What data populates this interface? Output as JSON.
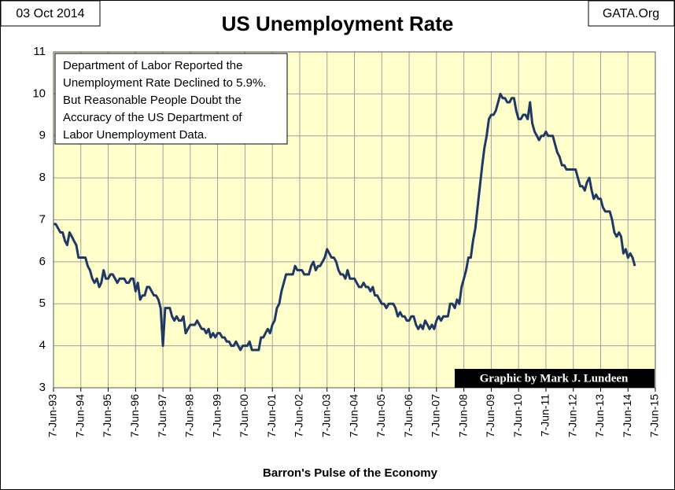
{
  "chart_data": {
    "type": "line",
    "title": "US Unemployment Rate",
    "date_label": "03 Oct 2014",
    "source_label": "GATA.Org",
    "annotation": [
      "Department of Labor Reported the",
      "Unemployment Rate Declined to 5.9%.",
      "But Reasonable People Doubt the",
      "Accuracy of the US Department of",
      "Labor Unemployment Data."
    ],
    "credit": "Graphic by Mark J. Lundeen",
    "xlabel": "Barron's Pulse of the Economy",
    "color": "#1f3864",
    "grid": true,
    "ylim": [
      3,
      11
    ],
    "yticks": [
      3,
      4,
      5,
      6,
      7,
      8,
      9,
      10,
      11
    ],
    "xlim": [
      "1993-06-07",
      "2015-06-07"
    ],
    "xticks": [
      {
        "value": "1993-06-07",
        "label": "7-Jun-93"
      },
      {
        "value": "1994-06-07",
        "label": "7-Jun-94"
      },
      {
        "value": "1995-06-07",
        "label": "7-Jun-95"
      },
      {
        "value": "1996-06-07",
        "label": "7-Jun-96"
      },
      {
        "value": "1997-06-07",
        "label": "7-Jun-97"
      },
      {
        "value": "1998-06-07",
        "label": "7-Jun-98"
      },
      {
        "value": "1999-06-07",
        "label": "7-Jun-99"
      },
      {
        "value": "2000-06-07",
        "label": "7-Jun-00"
      },
      {
        "value": "2001-06-07",
        "label": "7-Jun-01"
      },
      {
        "value": "2002-06-07",
        "label": "7-Jun-02"
      },
      {
        "value": "2003-06-07",
        "label": "7-Jun-03"
      },
      {
        "value": "2004-06-07",
        "label": "7-Jun-04"
      },
      {
        "value": "2005-06-07",
        "label": "7-Jun-05"
      },
      {
        "value": "2006-06-07",
        "label": "7-Jun-06"
      },
      {
        "value": "2007-06-07",
        "label": "7-Jun-07"
      },
      {
        "value": "2008-06-07",
        "label": "7-Jun-08"
      },
      {
        "value": "2009-06-07",
        "label": "7-Jun-09"
      },
      {
        "value": "2010-06-07",
        "label": "7-Jun-10"
      },
      {
        "value": "2011-06-07",
        "label": "7-Jun-11"
      },
      {
        "value": "2012-06-07",
        "label": "7-Jun-12"
      },
      {
        "value": "2013-06-07",
        "label": "7-Jun-13"
      },
      {
        "value": "2014-06-07",
        "label": "7-Jun-14"
      },
      {
        "value": "2015-06-07",
        "label": "7-Jun-15"
      }
    ],
    "x": [
      "1993-06-07",
      "1993-07-07",
      "1993-08-07",
      "1993-09-07",
      "1993-10-07",
      "1993-11-07",
      "1993-12-07",
      "1994-01-07",
      "1994-02-07",
      "1994-03-07",
      "1994-04-07",
      "1994-05-07",
      "1994-06-07",
      "1994-07-07",
      "1994-08-07",
      "1994-09-07",
      "1994-10-07",
      "1994-11-07",
      "1994-12-07",
      "1995-01-07",
      "1995-02-07",
      "1995-03-07",
      "1995-04-07",
      "1995-05-07",
      "1995-06-07",
      "1995-07-07",
      "1995-08-07",
      "1995-09-07",
      "1995-10-07",
      "1995-11-07",
      "1995-12-07",
      "1996-01-07",
      "1996-02-07",
      "1996-03-07",
      "1996-04-07",
      "1996-05-07",
      "1996-06-07",
      "1996-07-07",
      "1996-08-07",
      "1996-09-07",
      "1996-10-07",
      "1996-11-07",
      "1996-12-07",
      "1997-01-07",
      "1997-02-07",
      "1997-03-07",
      "1997-04-07",
      "1997-05-07",
      "1997-06-07",
      "1997-07-07",
      "1997-08-07",
      "1997-09-07",
      "1997-10-07",
      "1997-11-07",
      "1997-12-07",
      "1998-01-07",
      "1998-02-07",
      "1998-03-07",
      "1998-04-07",
      "1998-05-07",
      "1998-06-07",
      "1998-07-07",
      "1998-08-07",
      "1998-09-07",
      "1998-10-07",
      "1998-11-07",
      "1998-12-07",
      "1999-01-07",
      "1999-02-07",
      "1999-03-07",
      "1999-04-07",
      "1999-05-07",
      "1999-06-07",
      "1999-07-07",
      "1999-08-07",
      "1999-09-07",
      "1999-10-07",
      "1999-11-07",
      "1999-12-07",
      "2000-01-07",
      "2000-02-07",
      "2000-03-07",
      "2000-04-07",
      "2000-05-07",
      "2000-06-07",
      "2000-07-07",
      "2000-08-07",
      "2000-09-07",
      "2000-10-07",
      "2000-11-07",
      "2000-12-07",
      "2001-01-07",
      "2001-02-07",
      "2001-03-07",
      "2001-04-07",
      "2001-05-07",
      "2001-06-07",
      "2001-07-07",
      "2001-08-07",
      "2001-09-07",
      "2001-10-07",
      "2001-11-07",
      "2001-12-07",
      "2002-01-07",
      "2002-02-07",
      "2002-03-07",
      "2002-04-07",
      "2002-05-07",
      "2002-06-07",
      "2002-07-07",
      "2002-08-07",
      "2002-09-07",
      "2002-10-07",
      "2002-11-07",
      "2002-12-07",
      "2003-01-07",
      "2003-02-07",
      "2003-03-07",
      "2003-04-07",
      "2003-05-07",
      "2003-06-07",
      "2003-07-07",
      "2003-08-07",
      "2003-09-07",
      "2003-10-07",
      "2003-11-07",
      "2003-12-07",
      "2004-01-07",
      "2004-02-07",
      "2004-03-07",
      "2004-04-07",
      "2004-05-07",
      "2004-06-07",
      "2004-07-07",
      "2004-08-07",
      "2004-09-07",
      "2004-10-07",
      "2004-11-07",
      "2004-12-07",
      "2005-01-07",
      "2005-02-07",
      "2005-03-07",
      "2005-04-07",
      "2005-05-07",
      "2005-06-07",
      "2005-07-07",
      "2005-08-07",
      "2005-09-07",
      "2005-10-07",
      "2005-11-07",
      "2005-12-07",
      "2006-01-07",
      "2006-02-07",
      "2006-03-07",
      "2006-04-07",
      "2006-05-07",
      "2006-06-07",
      "2006-07-07",
      "2006-08-07",
      "2006-09-07",
      "2006-10-07",
      "2006-11-07",
      "2006-12-07",
      "2007-01-07",
      "2007-02-07",
      "2007-03-07",
      "2007-04-07",
      "2007-05-07",
      "2007-06-07",
      "2007-07-07",
      "2007-08-07",
      "2007-09-07",
      "2007-10-07",
      "2007-11-07",
      "2007-12-07",
      "2008-01-07",
      "2008-02-07",
      "2008-03-07",
      "2008-04-07",
      "2008-05-07",
      "2008-06-07",
      "2008-07-07",
      "2008-08-07",
      "2008-09-07",
      "2008-10-07",
      "2008-11-07",
      "2008-12-07",
      "2009-01-07",
      "2009-02-07",
      "2009-03-07",
      "2009-04-07",
      "2009-05-07",
      "2009-06-07",
      "2009-07-07",
      "2009-08-07",
      "2009-09-07",
      "2009-10-07",
      "2009-11-07",
      "2009-12-07",
      "2010-01-07",
      "2010-02-07",
      "2010-03-07",
      "2010-04-07",
      "2010-05-07",
      "2010-06-07",
      "2010-07-07",
      "2010-08-07",
      "2010-09-07",
      "2010-10-07",
      "2010-11-07",
      "2010-12-07",
      "2011-01-07",
      "2011-02-07",
      "2011-03-07",
      "2011-04-07",
      "2011-05-07",
      "2011-06-07",
      "2011-07-07",
      "2011-08-07",
      "2011-09-07",
      "2011-10-07",
      "2011-11-07",
      "2011-12-07",
      "2012-01-07",
      "2012-02-07",
      "2012-03-07",
      "2012-04-07",
      "2012-05-07",
      "2012-06-07",
      "2012-07-07",
      "2012-08-07",
      "2012-09-07",
      "2012-10-07",
      "2012-11-07",
      "2012-12-07",
      "2013-01-07",
      "2013-02-07",
      "2013-03-07",
      "2013-04-07",
      "2013-05-07",
      "2013-06-07",
      "2013-07-07",
      "2013-08-07",
      "2013-09-07",
      "2013-10-07",
      "2013-11-07",
      "2013-12-07",
      "2014-01-07",
      "2014-02-07",
      "2014-03-07",
      "2014-04-07",
      "2014-05-07",
      "2014-06-07",
      "2014-07-07",
      "2014-08-07",
      "2014-09-07"
    ],
    "values": [
      6.9,
      6.9,
      6.8,
      6.7,
      6.7,
      6.5,
      6.4,
      6.7,
      6.6,
      6.5,
      6.4,
      6.1,
      6.1,
      6.1,
      6.1,
      5.9,
      5.8,
      5.6,
      5.5,
      5.6,
      5.4,
      5.5,
      5.8,
      5.6,
      5.6,
      5.7,
      5.7,
      5.6,
      5.5,
      5.6,
      5.6,
      5.6,
      5.5,
      5.5,
      5.6,
      5.6,
      5.3,
      5.5,
      5.1,
      5.2,
      5.2,
      5.4,
      5.4,
      5.3,
      5.2,
      5.2,
      5.1,
      4.9,
      4.0,
      4.9,
      4.9,
      4.9,
      4.7,
      4.6,
      4.7,
      4.6,
      4.6,
      4.7,
      4.3,
      4.4,
      4.5,
      4.5,
      4.5,
      4.6,
      4.5,
      4.4,
      4.4,
      4.3,
      4.4,
      4.2,
      4.3,
      4.2,
      4.3,
      4.3,
      4.2,
      4.2,
      4.1,
      4.1,
      4.0,
      4.0,
      4.1,
      4.0,
      3.9,
      4.0,
      4.0,
      4.0,
      4.1,
      3.9,
      3.9,
      3.9,
      3.9,
      4.2,
      4.2,
      4.3,
      4.4,
      4.3,
      4.5,
      4.6,
      4.9,
      5.0,
      5.3,
      5.5,
      5.7,
      5.7,
      5.7,
      5.7,
      5.9,
      5.8,
      5.8,
      5.8,
      5.7,
      5.7,
      5.7,
      5.9,
      6.0,
      5.8,
      5.9,
      5.9,
      6.0,
      6.1,
      6.3,
      6.2,
      6.1,
      6.1,
      6.0,
      5.8,
      5.7,
      5.7,
      5.6,
      5.8,
      5.6,
      5.6,
      5.6,
      5.5,
      5.4,
      5.4,
      5.5,
      5.4,
      5.4,
      5.3,
      5.4,
      5.2,
      5.2,
      5.1,
      5.0,
      5.0,
      4.9,
      5.0,
      5.0,
      5.0,
      4.9,
      4.7,
      4.8,
      4.7,
      4.7,
      4.6,
      4.6,
      4.7,
      4.7,
      4.5,
      4.4,
      4.5,
      4.4,
      4.6,
      4.5,
      4.4,
      4.5,
      4.4,
      4.6,
      4.7,
      4.6,
      4.7,
      4.7,
      4.7,
      5.0,
      5.0,
      4.9,
      5.1,
      5.0,
      5.4,
      5.6,
      5.8,
      6.1,
      6.1,
      6.5,
      6.8,
      7.3,
      7.8,
      8.3,
      8.7,
      9.0,
      9.4,
      9.5,
      9.5,
      9.6,
      9.8,
      10.0,
      9.9,
      9.9,
      9.8,
      9.8,
      9.9,
      9.9,
      9.6,
      9.4,
      9.4,
      9.5,
      9.5,
      9.4,
      9.8,
      9.3,
      9.1,
      9.0,
      8.9,
      9.0,
      9.0,
      9.1,
      9.0,
      9.0,
      9.0,
      8.8,
      8.6,
      8.5,
      8.3,
      8.3,
      8.2,
      8.2,
      8.2,
      8.2,
      8.2,
      8.0,
      7.8,
      7.8,
      7.7,
      7.9,
      8.0,
      7.7,
      7.5,
      7.6,
      7.5,
      7.5,
      7.3,
      7.2,
      7.2,
      7.2,
      7.0,
      6.7,
      6.6,
      6.7,
      6.6,
      6.2,
      6.3,
      6.1,
      6.2,
      6.1,
      5.9
    ]
  }
}
